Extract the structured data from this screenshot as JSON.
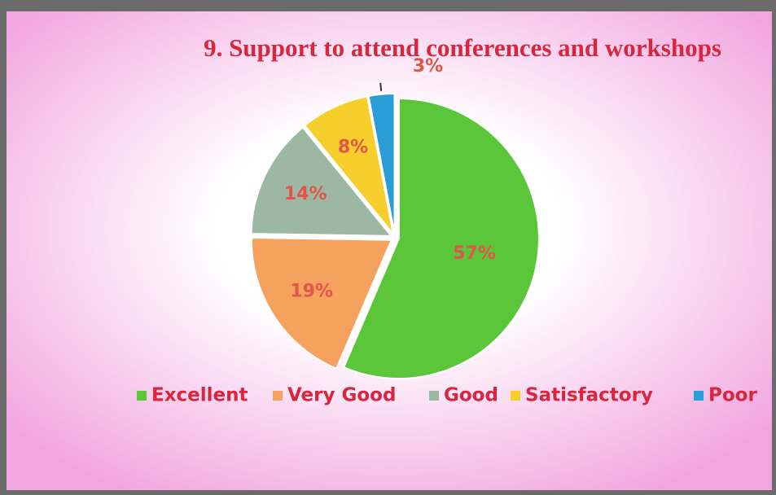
{
  "chart_data": {
    "type": "pie",
    "title": "9. Support to attend conferences and workshops",
    "categories": [
      "Excellent",
      "Very Good",
      "Good",
      "Satisfactory",
      "Poor"
    ],
    "values": [
      57,
      19,
      14,
      8,
      3
    ],
    "value_labels": [
      "57%",
      "19%",
      "14%",
      "8%",
      "3%"
    ],
    "colors": [
      "#5cc63a",
      "#f4a25e",
      "#9cb8a2",
      "#f6cf2c",
      "#2b9dd6"
    ],
    "legend": "bottom"
  }
}
